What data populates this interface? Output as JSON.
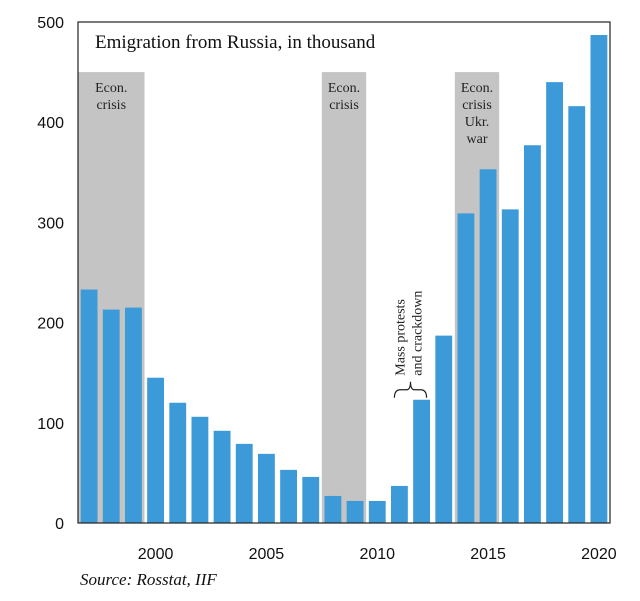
{
  "chart_data": {
    "type": "bar",
    "title": "Emigration from Russia, in thousand",
    "xlabel": "",
    "ylabel": "",
    "categories": [
      1997,
      1998,
      1999,
      2000,
      2001,
      2002,
      2003,
      2004,
      2005,
      2006,
      2007,
      2008,
      2009,
      2010,
      2011,
      2012,
      2013,
      2014,
      2015,
      2016,
      2017,
      2018,
      2019,
      2020
    ],
    "values": [
      233,
      213,
      215,
      145,
      120,
      106,
      92,
      79,
      69,
      53,
      46,
      27,
      22,
      22,
      37,
      123,
      187,
      309,
      353,
      313,
      377,
      440,
      416,
      487
    ],
    "ylim": [
      0,
      500
    ],
    "yticks": [
      0,
      100,
      200,
      300,
      400,
      500
    ],
    "xticks": [
      2000,
      2005,
      2010,
      2015,
      2020
    ],
    "grid": false,
    "bar_color": "#3d9ad8",
    "shaded_periods": [
      {
        "start": 1997,
        "end": 1999,
        "label_lines": [
          "Econ.",
          "crisis"
        ]
      },
      {
        "start": 2008,
        "end": 2009,
        "label_lines": [
          "Econ.",
          "crisis"
        ]
      },
      {
        "start": 2014,
        "end": 2015,
        "label_lines": [
          "Econ.",
          "crisis",
          "Ukr.",
          "war"
        ]
      }
    ],
    "annotation": {
      "lines": [
        "Mass protests",
        "and crackdown"
      ],
      "years": [
        2011,
        2012
      ]
    },
    "source": "Source: Rosstat, IIF"
  }
}
